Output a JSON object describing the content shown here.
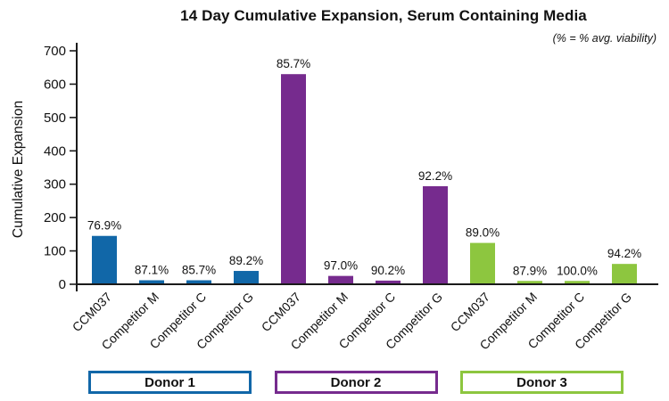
{
  "chart_data": {
    "type": "bar",
    "title": "14 Day Cumulative Expansion, Serum Containing Media",
    "subtitle": "(% = % avg. viability)",
    "ylabel": "Cumulative Expansion",
    "xlabel": "",
    "ylim": [
      0,
      700
    ],
    "yticks": [
      0,
      100,
      200,
      300,
      400,
      500,
      600,
      700
    ],
    "grid": false,
    "legend_position": "bottom",
    "categories": [
      "CCM037",
      "Competitor M",
      "Competitor C",
      "Competitor G",
      "CCM037",
      "Competitor M",
      "Competitor C",
      "Competitor G",
      "CCM037",
      "Competitor M",
      "Competitor C",
      "Competitor G"
    ],
    "groups": [
      {
        "name": "Donor 1",
        "color": "#1167A8",
        "bars": [
          {
            "label": "CCM037",
            "value": 145,
            "viability": "76.9%"
          },
          {
            "label": "Competitor M",
            "value": 12,
            "viability": "87.1%"
          },
          {
            "label": "Competitor C",
            "value": 12,
            "viability": "85.7%"
          },
          {
            "label": "Competitor G",
            "value": 40,
            "viability": "89.2%"
          }
        ]
      },
      {
        "name": "Donor 2",
        "color": "#762B8E",
        "bars": [
          {
            "label": "CCM037",
            "value": 630,
            "viability": "85.7%"
          },
          {
            "label": "Competitor M",
            "value": 25,
            "viability": "97.0%"
          },
          {
            "label": "Competitor C",
            "value": 11,
            "viability": "90.2%"
          },
          {
            "label": "Competitor G",
            "value": 294,
            "viability": "92.2%"
          }
        ]
      },
      {
        "name": "Donor 3",
        "color": "#8DC63F",
        "bars": [
          {
            "label": "CCM037",
            "value": 124,
            "viability": "89.0%"
          },
          {
            "label": "Competitor M",
            "value": 10,
            "viability": "87.9%"
          },
          {
            "label": "Competitor C",
            "value": 10,
            "viability": "100.0%"
          },
          {
            "label": "Competitor G",
            "value": 61,
            "viability": "94.2%"
          }
        ]
      }
    ],
    "text_color": "#111111",
    "axis_color": "#1a1a1a"
  }
}
